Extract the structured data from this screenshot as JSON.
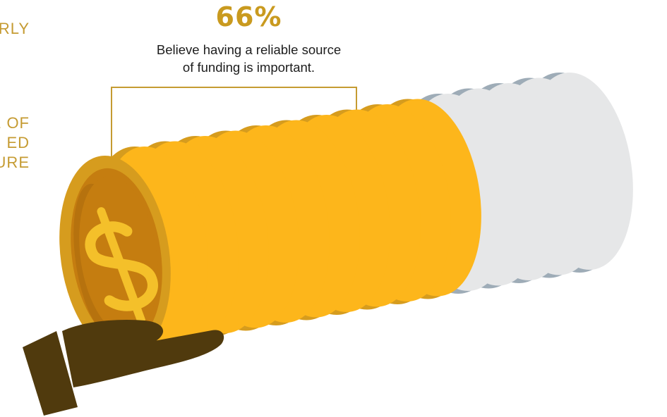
{
  "stat": {
    "value": "66%",
    "caption_line1": "Believe having a reliable source",
    "caption_line2": "of funding is important."
  },
  "cut_off_text": {
    "line1": "RLY",
    "line2": "E OF",
    "line3": "ED",
    "line4": "URE"
  },
  "coin_stack": {
    "filled_fraction": 0.66,
    "coin_icon": "dollar-sign-icon"
  },
  "colors": {
    "gold": "#fdb61b",
    "gold_dark": "#d69c1e",
    "gold_face": "#c57d10",
    "silver": "#e6e7e8",
    "silver_dark": "#9eacb7",
    "hand": "#503a0d",
    "label_gold": "#c59b32"
  }
}
